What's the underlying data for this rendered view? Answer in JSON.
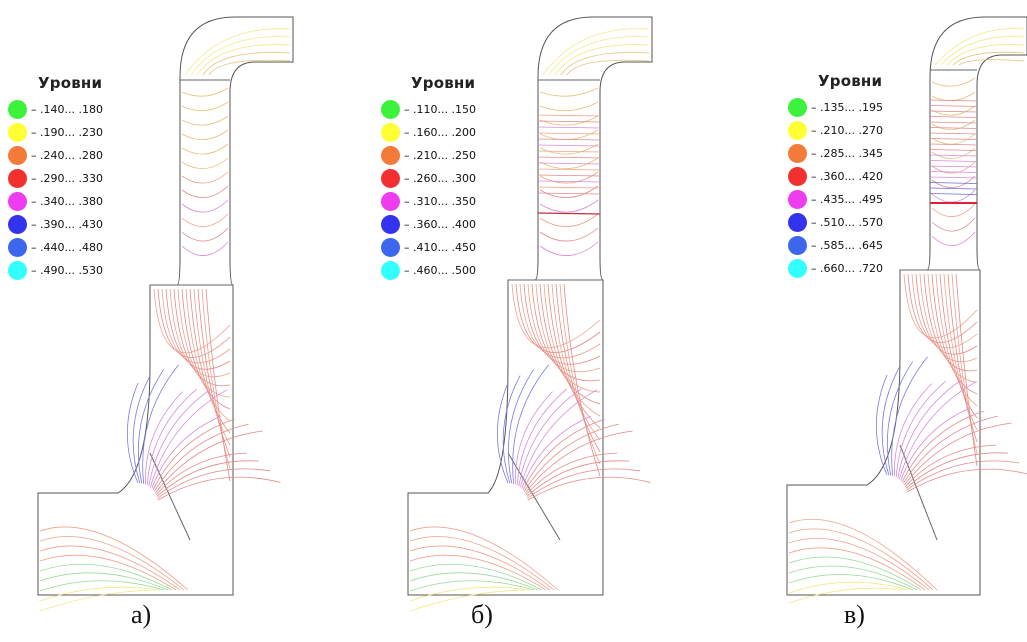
{
  "panels": [
    {
      "caption": "а)",
      "legend_title": "Уровни",
      "levels": [
        {
          "label": "– .140... .180",
          "color": "#3df23d"
        },
        {
          "label": "– .190... .230",
          "color": "#ffff33"
        },
        {
          "label": "– .240... .280",
          "color": "#f47a3a"
        },
        {
          "label": "– .290... .330",
          "color": "#f23030"
        },
        {
          "label": "– .340... .380",
          "color": "#ee3cee"
        },
        {
          "label": "– .390... .430",
          "color": "#3333ee"
        },
        {
          "label": "– .440... .480",
          "color": "#3d66ee"
        },
        {
          "label": "– .490... .530",
          "color": "#33ffff"
        }
      ]
    },
    {
      "caption": "б)",
      "legend_title": "Уровни",
      "levels": [
        {
          "label": "– .110... .150",
          "color": "#3df23d"
        },
        {
          "label": "– .160... .200",
          "color": "#ffff33"
        },
        {
          "label": "– .210... .250",
          "color": "#f47a3a"
        },
        {
          "label": "– .260... .300",
          "color": "#f23030"
        },
        {
          "label": "– .310... .350",
          "color": "#ee3cee"
        },
        {
          "label": "– .360... .400",
          "color": "#3333ee"
        },
        {
          "label": "– .410... .450",
          "color": "#3d66ee"
        },
        {
          "label": "– .460... .500",
          "color": "#33ffff"
        }
      ]
    },
    {
      "caption": "в)",
      "legend_title": "Уровни",
      "levels": [
        {
          "label": "– .135... .195",
          "color": "#3df23d"
        },
        {
          "label": "– .210... .270",
          "color": "#ffff33"
        },
        {
          "label": "– .285... .345",
          "color": "#f47a3a"
        },
        {
          "label": "– .360... .420",
          "color": "#f23030"
        },
        {
          "label": "– .435... .495",
          "color": "#ee3cee"
        },
        {
          "label": "– .510... .570",
          "color": "#3333ee"
        },
        {
          "label": "– .585... .645",
          "color": "#3d66ee"
        },
        {
          "label": "– .660... .720",
          "color": "#33ffff"
        }
      ]
    }
  ]
}
